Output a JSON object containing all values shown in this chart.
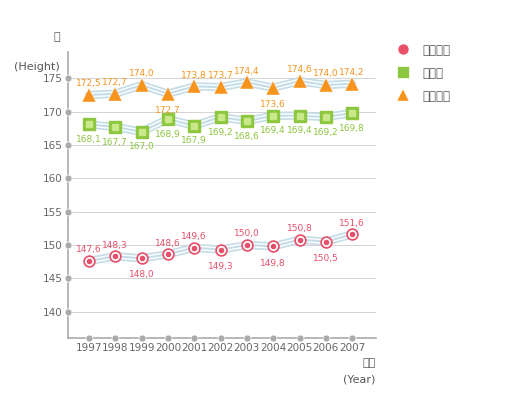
{
  "years": [
    1997,
    1998,
    1999,
    2000,
    2001,
    2002,
    2003,
    2004,
    2005,
    2006,
    2007
  ],
  "elementary": [
    147.6,
    148.3,
    148.0,
    148.6,
    149.6,
    149.3,
    150.0,
    149.8,
    150.8,
    150.5,
    151.6
  ],
  "middle": [
    168.1,
    167.7,
    167.0,
    168.9,
    167.9,
    169.2,
    168.6,
    169.4,
    169.4,
    169.2,
    169.8
  ],
  "high": [
    172.5,
    172.7,
    174.0,
    172.7,
    173.8,
    173.7,
    174.4,
    173.6,
    174.6,
    174.0,
    174.2
  ],
  "elementary_color": "#e8506a",
  "middle_color": "#8dc63f",
  "high_color": "#f7941d",
  "band_color": "#c5dde8",
  "ylabel_top": "키",
  "ylabel_bottom": "(Height)",
  "xlabel_top": "연도",
  "xlabel_bottom": "(Year)",
  "yticks": [
    140,
    145,
    150,
    155,
    160,
    165,
    170,
    175
  ],
  "ylim": [
    136,
    179
  ],
  "xlim": [
    1996.2,
    2007.9
  ],
  "legend_labels": [
    "초등학교",
    "중학교",
    "고등학교"
  ],
  "background_color": "#ffffff",
  "grid_color": "#cccccc",
  "axis_color": "#aaaaaa",
  "tick_color": "#666666",
  "label_color_elem": "#e8506a",
  "label_color_mid": "#8dc63f",
  "label_color_high": "#f7941d",
  "elem_label_offsets_y": [
    8,
    8,
    -12,
    8,
    8,
    -12,
    8,
    -12,
    8,
    -12,
    8
  ],
  "mid_label_offsets_y": [
    -11,
    -11,
    -11,
    -11,
    -11,
    -11,
    -11,
    -11,
    -11,
    -11,
    -11
  ],
  "high_label_offsets_y": [
    8,
    8,
    8,
    -12,
    8,
    8,
    8,
    -12,
    8,
    8,
    8
  ]
}
